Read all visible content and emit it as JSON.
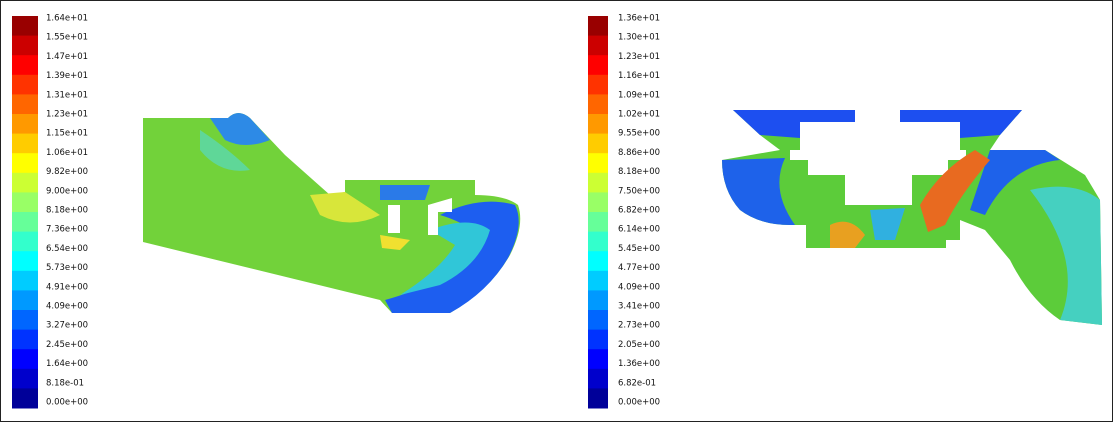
{
  "panels": [
    {
      "colorbar": {
        "labels": [
          "1.64e+01",
          "1.55e+01",
          "1.47e+01",
          "1.39e+01",
          "1.31e+01",
          "1.23e+01",
          "1.15e+01",
          "1.06e+01",
          "9.82e+00",
          "9.00e+00",
          "8.18e+00",
          "7.36e+00",
          "6.54e+00",
          "5.73e+00",
          "4.91e+00",
          "4.09e+00",
          "3.27e+00",
          "2.45e+00",
          "1.64e+00",
          "8.18e-01",
          "0.00e+00"
        ]
      }
    },
    {
      "colorbar": {
        "labels": [
          "1.36e+01",
          "1.30e+01",
          "1.23e+01",
          "1.16e+01",
          "1.09e+01",
          "1.02e+01",
          "9.55e+00",
          "8.86e+00",
          "8.18e+00",
          "7.50e+00",
          "6.82e+00",
          "6.14e+00",
          "5.45e+00",
          "4.77e+00",
          "4.09e+00",
          "3.41e+00",
          "2.73e+00",
          "2.05e+00",
          "1.36e+00",
          "6.82e-01",
          "0.00e+00"
        ]
      }
    }
  ]
}
